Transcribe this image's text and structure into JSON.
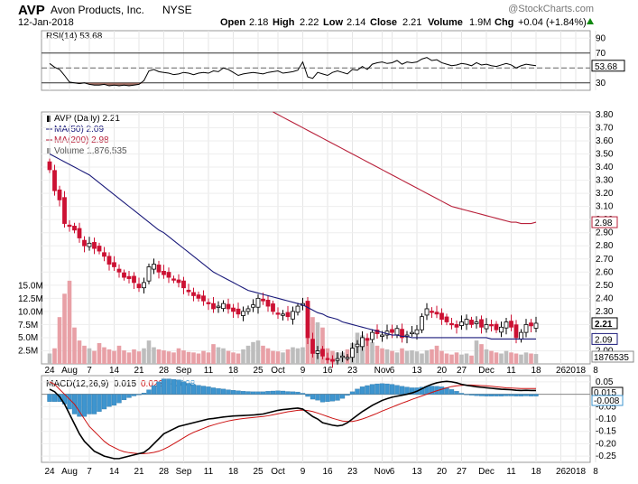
{
  "header": {
    "ticker": "AVP",
    "company": "Avon Products, Inc.",
    "exchange": "NYSE",
    "date": "12-Jan-2018",
    "watermark": "@StockCharts.com",
    "open_label": "Open",
    "open": "2.18",
    "high_label": "High",
    "high": "2.22",
    "low_label": "Low",
    "low": "2.14",
    "close_label": "Close",
    "close": "2.21",
    "volume_label": "Volume",
    "volume": "1.9M",
    "chg_label": "Chg",
    "chg": "+0.04 (+1.84%)"
  },
  "colors": {
    "up": "#000000",
    "down": "#cc1133",
    "ma50": "#1a1a7a",
    "ma200": "#b8203a",
    "volume_up": "#bdbdbd",
    "volume_down": "#e8a0a6",
    "macd_hist": "#3e95cf",
    "rsi_fill": "#9a6a60",
    "signal": "#cc1111",
    "chg_up": "#118811"
  },
  "chart_data": [
    {
      "type": "line",
      "name": "RSI",
      "legend": "RSI(14) 53.68",
      "ylim": [
        20,
        100
      ],
      "yticks": [
        30,
        50,
        70,
        90
      ],
      "levels": [
        30,
        70
      ],
      "last_label": "53.68",
      "series": [
        {
          "name": "RSI(14)",
          "values": [
            56,
            51,
            48,
            40,
            31,
            30,
            29,
            30,
            28,
            27,
            27,
            28,
            26,
            27,
            26,
            27,
            26,
            27,
            28,
            33,
            46,
            48,
            45,
            44,
            43,
            41,
            42,
            44,
            43,
            41,
            43,
            44,
            43,
            46,
            45,
            50,
            48,
            44,
            40,
            42,
            43,
            44,
            43,
            42,
            44,
            45,
            46,
            43,
            44,
            45,
            47,
            58,
            38,
            36,
            44,
            42,
            40,
            44,
            46,
            44,
            42,
            48,
            47,
            52,
            48,
            55,
            57,
            58,
            56,
            57,
            60,
            55,
            58,
            57,
            58,
            62,
            64,
            60,
            61,
            57,
            55,
            53,
            54,
            56,
            55,
            53,
            57,
            54,
            55,
            53,
            52,
            54,
            56,
            54,
            50,
            53,
            55,
            54,
            53
          ]
        }
      ]
    },
    {
      "type": "line",
      "name": "Price",
      "legend": [
        "AVP (Daily) 2.21",
        "MA(50) 2.09",
        "MA(200) 2.98",
        "Volume 1,876,535"
      ],
      "ylim": [
        1.9,
        3.82
      ],
      "yticks": [
        2.0,
        2.1,
        2.2,
        2.3,
        2.4,
        2.5,
        2.6,
        2.7,
        2.8,
        2.9,
        3.0,
        3.1,
        3.2,
        3.3,
        3.4,
        3.5,
        3.6,
        3.7,
        3.8
      ],
      "ytick_labels": [
        "2.00",
        "2.10",
        "2.20",
        "2.30",
        "2.40",
        "2.50",
        "2.60",
        "2.70",
        "2.80",
        "2.90",
        "3.00",
        "3.10",
        "3.20",
        "3.30",
        "3.40",
        "3.50",
        "3.60",
        "3.70",
        "3.80"
      ],
      "last_close": "2.21",
      "ma50_last": "2.09",
      "ma200_last": "2.98",
      "volume_axis": {
        "max": 16.5,
        "ticks": [
          2.5,
          5.0,
          7.5,
          10.0,
          12.5,
          15.0
        ],
        "tick_labels": [
          "2.5M",
          "5.0M",
          "7.5M",
          "10.0M",
          "12.5M",
          "15.0M"
        ],
        "last_label": "1876535"
      },
      "close": [
        3.38,
        3.22,
        3.15,
        2.97,
        2.95,
        2.92,
        2.86,
        2.8,
        2.82,
        2.78,
        2.76,
        2.72,
        2.66,
        2.64,
        2.6,
        2.56,
        2.55,
        2.52,
        2.48,
        2.52,
        2.64,
        2.66,
        2.6,
        2.58,
        2.56,
        2.54,
        2.52,
        2.48,
        2.45,
        2.42,
        2.4,
        2.38,
        2.36,
        2.32,
        2.34,
        2.36,
        2.32,
        2.3,
        2.28,
        2.3,
        2.32,
        2.35,
        2.4,
        2.38,
        2.34,
        2.3,
        2.28,
        2.28,
        2.26,
        2.3,
        2.34,
        2.36,
        2.1,
        1.98,
        2.0,
        1.96,
        1.94,
        1.92,
        1.94,
        1.96,
        1.95,
        2.02,
        2.05,
        2.1,
        2.08,
        2.14,
        2.13,
        2.12,
        2.15,
        2.14,
        2.17,
        2.1,
        2.12,
        2.14,
        2.16,
        2.26,
        2.32,
        2.3,
        2.28,
        2.24,
        2.22,
        2.2,
        2.18,
        2.22,
        2.24,
        2.2,
        2.22,
        2.18,
        2.2,
        2.19,
        2.16,
        2.18,
        2.22,
        2.18,
        2.1,
        2.14,
        2.2,
        2.19,
        2.21
      ],
      "ma50": [
        3.5,
        3.48,
        3.46,
        3.44,
        3.42,
        3.4,
        3.38,
        3.36,
        3.34,
        3.31,
        3.28,
        3.25,
        3.22,
        3.19,
        3.16,
        3.13,
        3.1,
        3.07,
        3.04,
        3.01,
        2.98,
        2.95,
        2.92,
        2.9,
        2.87,
        2.84,
        2.81,
        2.78,
        2.75,
        2.72,
        2.69,
        2.66,
        2.63,
        2.6,
        2.58,
        2.56,
        2.54,
        2.52,
        2.5,
        2.48,
        2.46,
        2.45,
        2.44,
        2.43,
        2.42,
        2.41,
        2.4,
        2.39,
        2.38,
        2.37,
        2.36,
        2.35,
        2.33,
        2.31,
        2.29,
        2.28,
        2.26,
        2.25,
        2.24,
        2.22,
        2.21,
        2.2,
        2.19,
        2.18,
        2.17,
        2.16,
        2.15,
        2.14,
        2.13,
        2.12,
        2.12,
        2.11,
        2.11,
        2.1,
        2.1,
        2.1,
        2.1,
        2.1,
        2.1,
        2.1,
        2.1,
        2.1,
        2.1,
        2.1,
        2.1,
        2.1,
        2.1,
        2.1,
        2.1,
        2.09,
        2.09,
        2.09,
        2.09,
        2.09,
        2.09,
        2.09,
        2.09,
        2.09,
        2.09
      ],
      "ma200_from_index": 45,
      "ma200": [
        3.82,
        3.8,
        3.78,
        3.76,
        3.74,
        3.72,
        3.7,
        3.68,
        3.66,
        3.64,
        3.62,
        3.6,
        3.58,
        3.56,
        3.54,
        3.52,
        3.5,
        3.48,
        3.46,
        3.44,
        3.42,
        3.4,
        3.38,
        3.36,
        3.34,
        3.32,
        3.3,
        3.28,
        3.26,
        3.24,
        3.22,
        3.2,
        3.18,
        3.16,
        3.14,
        3.12,
        3.1,
        3.09,
        3.08,
        3.07,
        3.06,
        3.05,
        3.04,
        3.03,
        3.02,
        3.01,
        3.0,
        2.99,
        2.98,
        2.98,
        2.97,
        2.97,
        2.97,
        2.98
      ],
      "volume": [
        2.0,
        3.0,
        9.0,
        13.5,
        16.0,
        7.0,
        4.5,
        3.5,
        3.0,
        2.5,
        4.0,
        3.2,
        2.8,
        2.5,
        3.5,
        2.6,
        2.2,
        2.8,
        2.4,
        3.0,
        4.5,
        3.2,
        2.8,
        2.6,
        2.4,
        2.2,
        3.0,
        2.6,
        2.3,
        2.2,
        2.0,
        2.5,
        2.2,
        3.8,
        3.2,
        3.0,
        2.5,
        2.2,
        2.0,
        2.8,
        3.5,
        4.2,
        4.5,
        3.5,
        3.0,
        2.5,
        2.4,
        2.2,
        2.8,
        3.2,
        3.0,
        3.2,
        11.5,
        9.0,
        8.0,
        7.0,
        3.0,
        2.5,
        2.2,
        2.2,
        2.8,
        4.0,
        6.0,
        5.5,
        5.0,
        4.2,
        3.5,
        3.0,
        2.8,
        2.5,
        2.2,
        3.0,
        2.5,
        2.6,
        2.4,
        2.0,
        2.6,
        2.8,
        3.5,
        2.5,
        2.0,
        1.8,
        2.2,
        1.8,
        2.0,
        1.6,
        4.5,
        3.8,
        2.8,
        2.5,
        2.2,
        2.0,
        2.5,
        2.2,
        2.0,
        1.8,
        2.2,
        2.0,
        1.9
      ]
    },
    {
      "type": "line",
      "name": "MACD",
      "legend": [
        "MACD(12,26,9)",
        "0.015",
        "0.023",
        "-0.008"
      ],
      "ylim": [
        -0.275,
        0.075
      ],
      "yticks": [
        0.05,
        0.0,
        -0.05,
        -0.1,
        -0.15,
        -0.2,
        -0.25
      ],
      "ytick_labels": [
        "0.05",
        "0.00",
        "-0.05",
        "-0.10",
        "-0.15",
        "-0.20",
        "-0.25"
      ],
      "last_labels": [
        "0.015",
        "-0.008"
      ],
      "series": [
        {
          "name": "MACD",
          "values": [
            0.02,
            0.01,
            -0.01,
            -0.04,
            -0.08,
            -0.12,
            -0.16,
            -0.19,
            -0.21,
            -0.23,
            -0.24,
            -0.25,
            -0.255,
            -0.26,
            -0.26,
            -0.255,
            -0.25,
            -0.245,
            -0.24,
            -0.235,
            -0.22,
            -0.2,
            -0.18,
            -0.16,
            -0.15,
            -0.14,
            -0.13,
            -0.125,
            -0.12,
            -0.115,
            -0.11,
            -0.105,
            -0.1,
            -0.098,
            -0.095,
            -0.092,
            -0.09,
            -0.088,
            -0.087,
            -0.086,
            -0.085,
            -0.084,
            -0.082,
            -0.08,
            -0.075,
            -0.07,
            -0.065,
            -0.062,
            -0.06,
            -0.058,
            -0.056,
            -0.06,
            -0.075,
            -0.09,
            -0.1,
            -0.115,
            -0.12,
            -0.125,
            -0.128,
            -0.125,
            -0.115,
            -0.1,
            -0.085,
            -0.07,
            -0.058,
            -0.045,
            -0.035,
            -0.025,
            -0.018,
            -0.012,
            -0.008,
            -0.004,
            0.0,
            0.005,
            0.012,
            0.022,
            0.032,
            0.04,
            0.046,
            0.05,
            0.052,
            0.05,
            0.046,
            0.04,
            0.036,
            0.033,
            0.03,
            0.028,
            0.026,
            0.024,
            0.022,
            0.02,
            0.019,
            0.018,
            0.016,
            0.015,
            0.016,
            0.015,
            0.015
          ]
        },
        {
          "name": "Signal",
          "values": [
            0.05,
            0.04,
            0.02,
            0.0,
            -0.02,
            -0.04,
            -0.07,
            -0.1,
            -0.13,
            -0.15,
            -0.17,
            -0.19,
            -0.205,
            -0.215,
            -0.225,
            -0.232,
            -0.236,
            -0.238,
            -0.24,
            -0.24,
            -0.238,
            -0.235,
            -0.23,
            -0.222,
            -0.212,
            -0.2,
            -0.188,
            -0.176,
            -0.164,
            -0.154,
            -0.146,
            -0.138,
            -0.13,
            -0.124,
            -0.118,
            -0.113,
            -0.108,
            -0.104,
            -0.101,
            -0.098,
            -0.096,
            -0.094,
            -0.092,
            -0.09,
            -0.087,
            -0.083,
            -0.079,
            -0.075,
            -0.071,
            -0.068,
            -0.065,
            -0.064,
            -0.066,
            -0.07,
            -0.076,
            -0.083,
            -0.09,
            -0.097,
            -0.103,
            -0.108,
            -0.11,
            -0.11,
            -0.106,
            -0.1,
            -0.093,
            -0.085,
            -0.077,
            -0.068,
            -0.06,
            -0.052,
            -0.044,
            -0.036,
            -0.029,
            -0.021,
            -0.014,
            -0.007,
            0.0,
            0.007,
            0.014,
            0.02,
            0.026,
            0.031,
            0.034,
            0.036,
            0.037,
            0.037,
            0.036,
            0.035,
            0.034,
            0.032,
            0.03,
            0.028,
            0.026,
            0.025,
            0.024,
            0.023,
            0.023,
            0.023,
            0.023
          ]
        }
      ]
    }
  ],
  "x_axis": {
    "labels": [
      {
        "i": 0,
        "text": "24"
      },
      {
        "i": 4,
        "text": "Aug"
      },
      {
        "i": 8,
        "text": "7"
      },
      {
        "i": 13,
        "text": "14"
      },
      {
        "i": 18,
        "text": "21"
      },
      {
        "i": 23,
        "text": "28"
      },
      {
        "i": 27,
        "text": "Sep"
      },
      {
        "i": 32,
        "text": "11"
      },
      {
        "i": 37,
        "text": "18"
      },
      {
        "i": 42,
        "text": "25"
      },
      {
        "i": 46,
        "text": "Oct"
      },
      {
        "i": 51,
        "text": "9"
      },
      {
        "i": 56,
        "text": "16"
      },
      {
        "i": 61,
        "text": "23"
      },
      {
        "i": 67,
        "text": "Nov"
      },
      {
        "i": 69,
        "text": "6"
      },
      {
        "i": 74,
        "text": "13"
      },
      {
        "i": 79,
        "text": "20"
      },
      {
        "i": 83,
        "text": "27"
      },
      {
        "i": 88,
        "text": "Dec"
      },
      {
        "i": 93,
        "text": "11"
      },
      {
        "i": 98,
        "text": "18"
      },
      {
        "i": 103,
        "text": "26"
      },
      {
        "i": 106,
        "text": "2018"
      },
      {
        "i": 110,
        "text": "8"
      }
    ]
  }
}
